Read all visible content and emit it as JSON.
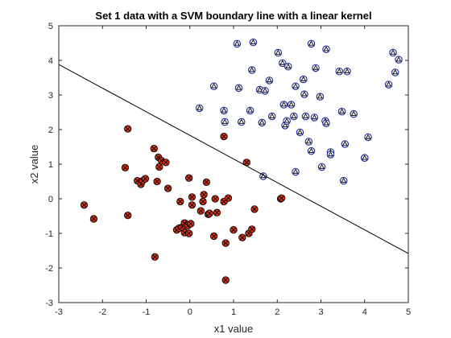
{
  "chart_data": {
    "type": "scatter",
    "title": "Set 1 data with a SVM boundary line with a linear kernel",
    "xlabel": "x1 value",
    "ylabel": "x2 value",
    "xlim": [
      -3,
      5
    ],
    "ylim": [
      -3,
      5
    ],
    "xticks": [
      "-3",
      "-2",
      "-1",
      "0",
      "1",
      "2",
      "3",
      "4",
      "5"
    ],
    "yticks": [
      "-3",
      "-2",
      "-1",
      "0",
      "1",
      "2",
      "3",
      "4",
      "5"
    ],
    "grid": false,
    "legend": "none",
    "boundary_line": {
      "x": [
        -3,
        5
      ],
      "y": [
        3.88,
        -1.58
      ],
      "color": "#000000"
    },
    "series": [
      {
        "marker": "circle with x",
        "face_color": "#e03010",
        "edge_color": "#000000",
        "x": [
          -2.42,
          -2.2,
          -1.48,
          -1.42,
          -1.42,
          -1.2,
          -1.12,
          -1.08,
          -1.02,
          -0.82,
          -0.8,
          -0.75,
          -0.72,
          -0.7,
          -0.65,
          -0.55,
          -0.5,
          -0.3,
          -0.25,
          -0.22,
          -0.18,
          -0.12,
          -0.12,
          -0.05,
          -0.02,
          -0.02,
          0.02,
          0.05,
          0.05,
          0.25,
          0.3,
          0.32,
          0.38,
          0.42,
          0.45,
          0.55,
          0.58,
          0.62,
          0.78,
          0.78,
          0.82,
          0.82,
          0.88,
          1.0,
          1.2,
          1.3,
          1.35,
          1.42,
          1.48,
          2.08,
          2.1
        ],
        "y": [
          -0.18,
          -0.58,
          0.9,
          2.02,
          -0.48,
          0.52,
          0.42,
          0.52,
          0.58,
          1.45,
          -1.68,
          0.5,
          1.2,
          0.92,
          1.1,
          1.05,
          0.3,
          -0.9,
          -0.85,
          -0.08,
          -0.82,
          -0.98,
          -0.7,
          -0.78,
          -1.0,
          0.6,
          -0.72,
          0.05,
          -0.18,
          -0.35,
          -0.08,
          0.12,
          0.48,
          -0.45,
          -0.42,
          -1.08,
          0.0,
          -0.4,
          -0.08,
          1.8,
          -2.35,
          -1.28,
          0.02,
          -0.9,
          -1.12,
          1.05,
          -1.0,
          -0.88,
          -0.3,
          0.0,
          0.02
        ]
      },
      {
        "marker": "circle with triangle",
        "face_color": "#ffffff",
        "edge_color": "#1a2a9a",
        "x": [
          0.22,
          0.55,
          0.78,
          0.8,
          1.08,
          1.12,
          1.18,
          1.38,
          1.42,
          1.45,
          1.6,
          1.65,
          1.72,
          1.82,
          1.88,
          2.02,
          2.12,
          2.15,
          2.18,
          2.22,
          2.25,
          2.32,
          2.38,
          2.42,
          2.52,
          2.6,
          2.62,
          2.65,
          2.72,
          2.78,
          2.85,
          2.88,
          2.98,
          3.02,
          3.1,
          3.12,
          3.22,
          3.42,
          3.48,
          3.55,
          3.6,
          3.75,
          4.0,
          4.08,
          4.55,
          4.65,
          4.7,
          4.78,
          1.68,
          2.42,
          2.78,
          3.22,
          3.52,
          4.0,
          3.12
        ],
        "y": [
          2.62,
          3.25,
          2.55,
          2.22,
          4.48,
          3.2,
          2.22,
          2.55,
          3.72,
          4.52,
          3.15,
          2.2,
          3.12,
          3.42,
          2.38,
          4.22,
          3.92,
          2.72,
          2.12,
          2.25,
          3.82,
          2.72,
          2.38,
          3.25,
          1.92,
          3.45,
          3.02,
          2.38,
          1.65,
          4.48,
          2.35,
          3.78,
          2.95,
          0.92,
          2.25,
          4.32,
          1.35,
          3.68,
          2.52,
          1.58,
          3.68,
          2.45,
          1.18,
          1.78,
          3.3,
          4.22,
          3.65,
          4.02,
          0.65,
          0.78,
          1.38,
          1.28,
          0.52,
          1.18,
          2.18
        ]
      }
    ]
  }
}
